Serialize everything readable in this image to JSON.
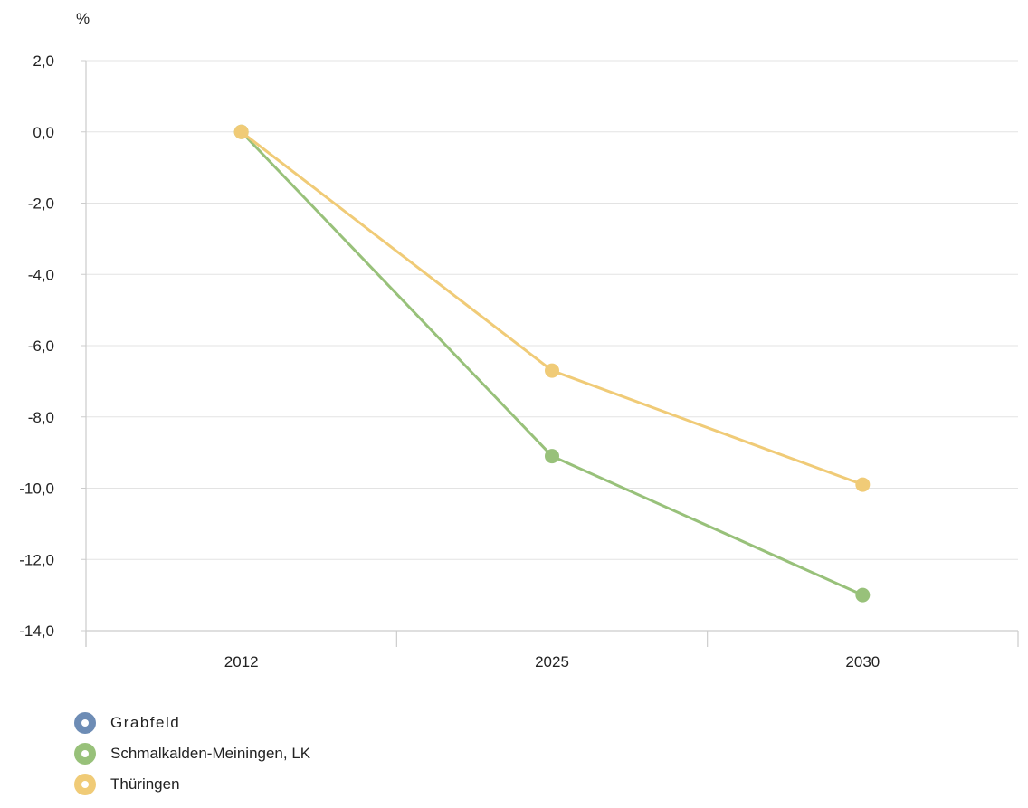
{
  "chart_data": {
    "type": "line",
    "ylabel": "%",
    "ylim": [
      -14,
      2
    ],
    "yticks": [
      2,
      0,
      -2,
      -4,
      -6,
      -8,
      -10,
      -12,
      -14
    ],
    "ytick_labels": [
      "2,0",
      "0,0",
      "-2,0",
      "-4,0",
      "-6,0",
      "-8,0",
      "-10,0",
      "-12,0",
      "-14,0"
    ],
    "categories": [
      "2012",
      "2025",
      "2030"
    ],
    "grid": true,
    "legend_position": "bottom-left",
    "series": [
      {
        "name": "Grabfeld",
        "color": "#6d8cb5",
        "values": [
          null,
          null,
          null
        ]
      },
      {
        "name": "Schmalkalden-Meiningen, LK",
        "color": "#98c17a",
        "values": [
          0.0,
          -9.1,
          -13.0
        ]
      },
      {
        "name": "Thüringen",
        "color": "#f0cb77",
        "values": [
          0.0,
          -6.7,
          -9.9
        ]
      }
    ]
  }
}
